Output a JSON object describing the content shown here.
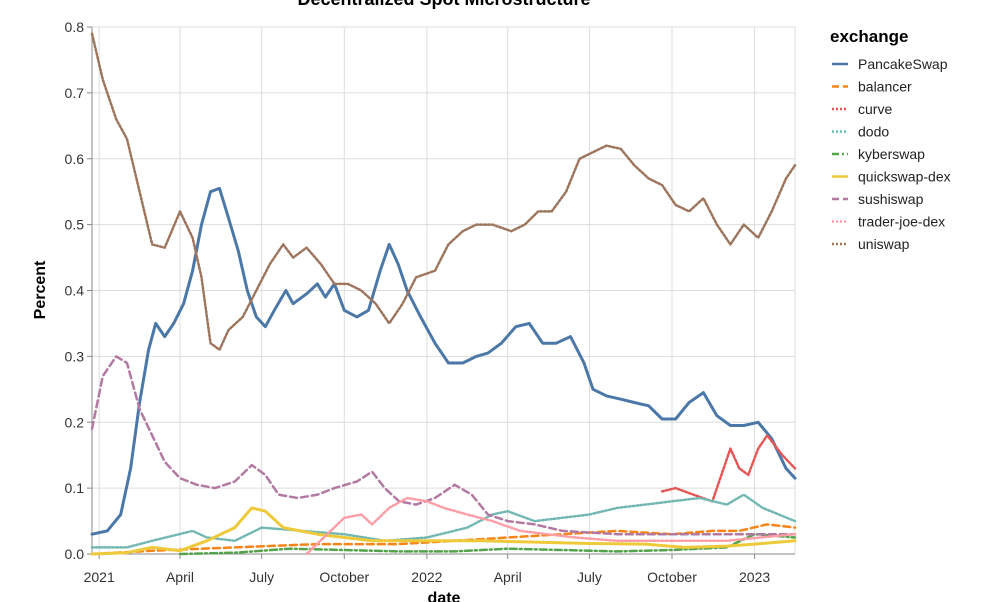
{
  "chart_data": {
    "type": "line",
    "title": "Decentralized Spot Microstructure",
    "xlabel": "date",
    "ylabel": "Percent",
    "ylim": [
      0,
      0.8
    ],
    "xlim": [
      "2020-12-24",
      "2023-02-15"
    ],
    "grid": true,
    "legend": {
      "title": "exchange",
      "placement": "right"
    },
    "x_ticks": [
      {
        "date": "2021-01-01",
        "label": "2021"
      },
      {
        "date": "2021-04-01",
        "label": "April"
      },
      {
        "date": "2021-07-01",
        "label": "July"
      },
      {
        "date": "2021-10-01",
        "label": "October"
      },
      {
        "date": "2022-01-01",
        "label": "2022"
      },
      {
        "date": "2022-04-01",
        "label": "April"
      },
      {
        "date": "2022-07-01",
        "label": "July"
      },
      {
        "date": "2022-10-01",
        "label": "October"
      },
      {
        "date": "2023-01-01",
        "label": "2023"
      }
    ],
    "y_ticks": [
      {
        "value": 0.0,
        "label": "0.0"
      },
      {
        "value": 0.1,
        "label": "0.1"
      },
      {
        "value": 0.2,
        "label": "0.2"
      },
      {
        "value": 0.3,
        "label": "0.3"
      },
      {
        "value": 0.4,
        "label": "0.4"
      },
      {
        "value": 0.5,
        "label": "0.5"
      },
      {
        "value": 0.6,
        "label": "0.6"
      },
      {
        "value": 0.7,
        "label": "0.7"
      },
      {
        "value": 0.8,
        "label": "0.8"
      }
    ],
    "series": [
      {
        "name": "PancakeSwap",
        "color": "#4c78a8",
        "dash": "solid",
        "points": [
          [
            "2020-12-24",
            0.03
          ],
          [
            "2021-01-10",
            0.035
          ],
          [
            "2021-01-25",
            0.06
          ],
          [
            "2021-02-05",
            0.13
          ],
          [
            "2021-02-15",
            0.23
          ],
          [
            "2021-02-25",
            0.31
          ],
          [
            "2021-03-05",
            0.35
          ],
          [
            "2021-03-15",
            0.33
          ],
          [
            "2021-03-25",
            0.35
          ],
          [
            "2021-04-05",
            0.38
          ],
          [
            "2021-04-15",
            0.43
          ],
          [
            "2021-04-25",
            0.5
          ],
          [
            "2021-05-05",
            0.55
          ],
          [
            "2021-05-15",
            0.555
          ],
          [
            "2021-05-25",
            0.51
          ],
          [
            "2021-06-05",
            0.46
          ],
          [
            "2021-06-15",
            0.4
          ],
          [
            "2021-06-25",
            0.36
          ],
          [
            "2021-07-05",
            0.345
          ],
          [
            "2021-07-15",
            0.37
          ],
          [
            "2021-07-28",
            0.4
          ],
          [
            "2021-08-05",
            0.38
          ],
          [
            "2021-08-20",
            0.395
          ],
          [
            "2021-09-01",
            0.41
          ],
          [
            "2021-09-10",
            0.39
          ],
          [
            "2021-09-20",
            0.41
          ],
          [
            "2021-10-01",
            0.37
          ],
          [
            "2021-10-15",
            0.36
          ],
          [
            "2021-10-28",
            0.37
          ],
          [
            "2021-11-10",
            0.43
          ],
          [
            "2021-11-20",
            0.47
          ],
          [
            "2021-11-30",
            0.44
          ],
          [
            "2021-12-10",
            0.4
          ],
          [
            "2021-12-25",
            0.36
          ],
          [
            "2022-01-10",
            0.32
          ],
          [
            "2022-01-25",
            0.29
          ],
          [
            "2022-02-10",
            0.29
          ],
          [
            "2022-02-25",
            0.3
          ],
          [
            "2022-03-10",
            0.305
          ],
          [
            "2022-03-25",
            0.32
          ],
          [
            "2022-04-10",
            0.345
          ],
          [
            "2022-04-25",
            0.35
          ],
          [
            "2022-05-10",
            0.32
          ],
          [
            "2022-05-25",
            0.32
          ],
          [
            "2022-06-10",
            0.33
          ],
          [
            "2022-06-25",
            0.29
          ],
          [
            "2022-07-05",
            0.25
          ],
          [
            "2022-07-20",
            0.24
          ],
          [
            "2022-08-05",
            0.235
          ],
          [
            "2022-08-20",
            0.23
          ],
          [
            "2022-09-05",
            0.225
          ],
          [
            "2022-09-20",
            0.205
          ],
          [
            "2022-10-05",
            0.205
          ],
          [
            "2022-10-20",
            0.23
          ],
          [
            "2022-11-05",
            0.245
          ],
          [
            "2022-11-20",
            0.21
          ],
          [
            "2022-12-05",
            0.195
          ],
          [
            "2022-12-20",
            0.195
          ],
          [
            "2023-01-05",
            0.2
          ],
          [
            "2023-01-20",
            0.175
          ],
          [
            "2023-02-05",
            0.13
          ],
          [
            "2023-02-15",
            0.115
          ]
        ]
      },
      {
        "name": "balancer",
        "color": "#f58518",
        "dash": "dashed",
        "points": [
          [
            "2020-12-24",
            0.0
          ],
          [
            "2021-03-01",
            0.005
          ],
          [
            "2021-06-01",
            0.01
          ],
          [
            "2021-09-01",
            0.015
          ],
          [
            "2021-12-01",
            0.015
          ],
          [
            "2022-02-01",
            0.02
          ],
          [
            "2022-04-01",
            0.025
          ],
          [
            "2022-06-01",
            0.03
          ],
          [
            "2022-08-01",
            0.035
          ],
          [
            "2022-10-01",
            0.03
          ],
          [
            "2022-11-15",
            0.035
          ],
          [
            "2022-12-15",
            0.035
          ],
          [
            "2023-01-15",
            0.045
          ],
          [
            "2023-02-15",
            0.04
          ]
        ]
      },
      {
        "name": "curve",
        "color": "#e45756",
        "dash": "dotted",
        "points": [
          [
            "2022-09-20",
            0.095
          ],
          [
            "2022-10-05",
            0.1
          ],
          [
            "2022-10-25",
            0.09
          ],
          [
            "2022-11-15",
            0.08
          ],
          [
            "2022-11-25",
            0.12
          ],
          [
            "2022-12-05",
            0.16
          ],
          [
            "2022-12-15",
            0.13
          ],
          [
            "2022-12-25",
            0.12
          ],
          [
            "2023-01-05",
            0.16
          ],
          [
            "2023-01-15",
            0.18
          ],
          [
            "2023-02-01",
            0.15
          ],
          [
            "2023-02-15",
            0.13
          ]
        ]
      },
      {
        "name": "dodo",
        "color": "#72b7b2",
        "dash": "dotted",
        "points": [
          [
            "2020-12-24",
            0.01
          ],
          [
            "2021-02-01",
            0.01
          ],
          [
            "2021-03-01",
            0.02
          ],
          [
            "2021-04-15",
            0.035
          ],
          [
            "2021-05-01",
            0.025
          ],
          [
            "2021-06-01",
            0.02
          ],
          [
            "2021-07-01",
            0.04
          ],
          [
            "2021-08-15",
            0.035
          ],
          [
            "2021-10-01",
            0.03
          ],
          [
            "2021-11-15",
            0.02
          ],
          [
            "2022-01-01",
            0.025
          ],
          [
            "2022-02-15",
            0.04
          ],
          [
            "2022-03-15",
            0.06
          ],
          [
            "2022-04-01",
            0.065
          ],
          [
            "2022-05-01",
            0.05
          ],
          [
            "2022-06-01",
            0.055
          ],
          [
            "2022-07-01",
            0.06
          ],
          [
            "2022-08-01",
            0.07
          ],
          [
            "2022-09-01",
            0.075
          ],
          [
            "2022-10-01",
            0.08
          ],
          [
            "2022-11-01",
            0.085
          ],
          [
            "2022-12-01",
            0.075
          ],
          [
            "2022-12-20",
            0.09
          ],
          [
            "2023-01-10",
            0.07
          ],
          [
            "2023-02-15",
            0.05
          ]
        ]
      },
      {
        "name": "kyberswap",
        "color": "#54a24b",
        "dash": "dashdot",
        "points": [
          [
            "2021-04-01",
            0.0
          ],
          [
            "2021-06-01",
            0.002
          ],
          [
            "2021-08-01",
            0.008
          ],
          [
            "2021-10-01",
            0.006
          ],
          [
            "2021-12-01",
            0.004
          ],
          [
            "2022-02-01",
            0.004
          ],
          [
            "2022-04-01",
            0.008
          ],
          [
            "2022-06-01",
            0.006
          ],
          [
            "2022-08-01",
            0.004
          ],
          [
            "2022-10-01",
            0.006
          ],
          [
            "2022-12-01",
            0.01
          ],
          [
            "2023-01-01",
            0.03
          ],
          [
            "2023-02-15",
            0.025
          ]
        ]
      },
      {
        "name": "quickswap-dex",
        "color": "#eeca3b",
        "dash": "solid",
        "points": [
          [
            "2020-12-24",
            0.0
          ],
          [
            "2021-02-01",
            0.002
          ],
          [
            "2021-03-01",
            0.01
          ],
          [
            "2021-04-01",
            0.005
          ],
          [
            "2021-05-01",
            0.02
          ],
          [
            "2021-06-01",
            0.04
          ],
          [
            "2021-06-20",
            0.07
          ],
          [
            "2021-07-05",
            0.065
          ],
          [
            "2021-07-25",
            0.04
          ],
          [
            "2021-09-01",
            0.03
          ],
          [
            "2021-10-01",
            0.025
          ],
          [
            "2021-11-01",
            0.02
          ],
          [
            "2022-01-01",
            0.02
          ],
          [
            "2022-03-01",
            0.02
          ],
          [
            "2022-05-01",
            0.018
          ],
          [
            "2022-07-01",
            0.016
          ],
          [
            "2022-09-01",
            0.015
          ],
          [
            "2022-10-15",
            0.01
          ],
          [
            "2022-12-01",
            0.012
          ],
          [
            "2023-01-01",
            0.015
          ],
          [
            "2023-02-15",
            0.02
          ]
        ]
      },
      {
        "name": "sushiswap",
        "color": "#b279a2",
        "dash": "dashed",
        "points": [
          [
            "2020-12-24",
            0.19
          ],
          [
            "2021-01-05",
            0.27
          ],
          [
            "2021-01-20",
            0.3
          ],
          [
            "2021-02-01",
            0.29
          ],
          [
            "2021-02-15",
            0.22
          ],
          [
            "2021-03-01",
            0.18
          ],
          [
            "2021-03-15",
            0.14
          ],
          [
            "2021-04-01",
            0.115
          ],
          [
            "2021-04-20",
            0.105
          ],
          [
            "2021-05-10",
            0.1
          ],
          [
            "2021-06-01",
            0.11
          ],
          [
            "2021-06-20",
            0.135
          ],
          [
            "2021-07-05",
            0.12
          ],
          [
            "2021-07-20",
            0.09
          ],
          [
            "2021-08-10",
            0.085
          ],
          [
            "2021-09-01",
            0.09
          ],
          [
            "2021-09-20",
            0.1
          ],
          [
            "2021-10-15",
            0.11
          ],
          [
            "2021-11-01",
            0.125
          ],
          [
            "2021-11-15",
            0.1
          ],
          [
            "2021-12-01",
            0.08
          ],
          [
            "2021-12-20",
            0.075
          ],
          [
            "2022-01-10",
            0.085
          ],
          [
            "2022-02-01",
            0.105
          ],
          [
            "2022-02-20",
            0.09
          ],
          [
            "2022-03-10",
            0.06
          ],
          [
            "2022-04-01",
            0.05
          ],
          [
            "2022-05-01",
            0.045
          ],
          [
            "2022-06-01",
            0.035
          ],
          [
            "2022-08-01",
            0.03
          ],
          [
            "2022-10-01",
            0.03
          ],
          [
            "2022-12-01",
            0.03
          ],
          [
            "2023-02-15",
            0.03
          ]
        ]
      },
      {
        "name": "trader-joe-dex",
        "color": "#ff9da6",
        "dash": "dotted",
        "points": [
          [
            "2021-08-20",
            0.0
          ],
          [
            "2021-10-01",
            0.055
          ],
          [
            "2021-10-20",
            0.06
          ],
          [
            "2021-11-01",
            0.045
          ],
          [
            "2021-11-20",
            0.07
          ],
          [
            "2021-12-10",
            0.085
          ],
          [
            "2022-01-01",
            0.08
          ],
          [
            "2022-01-20",
            0.07
          ],
          [
            "2022-02-15",
            0.06
          ],
          [
            "2022-03-15",
            0.05
          ],
          [
            "2022-04-15",
            0.035
          ],
          [
            "2022-05-15",
            0.03
          ],
          [
            "2022-06-15",
            0.025
          ],
          [
            "2022-08-01",
            0.02
          ],
          [
            "2022-10-01",
            0.02
          ],
          [
            "2022-12-01",
            0.02
          ],
          [
            "2023-02-15",
            0.03
          ]
        ]
      },
      {
        "name": "uniswap",
        "color": "#9d755d",
        "dash": "dotted",
        "points": [
          [
            "2020-12-24",
            0.79
          ],
          [
            "2021-01-05",
            0.72
          ],
          [
            "2021-01-20",
            0.66
          ],
          [
            "2021-02-01",
            0.63
          ],
          [
            "2021-02-15",
            0.55
          ],
          [
            "2021-03-01",
            0.47
          ],
          [
            "2021-03-15",
            0.465
          ],
          [
            "2021-04-01",
            0.52
          ],
          [
            "2021-04-15",
            0.48
          ],
          [
            "2021-04-25",
            0.42
          ],
          [
            "2021-05-05",
            0.32
          ],
          [
            "2021-05-15",
            0.31
          ],
          [
            "2021-05-25",
            0.34
          ],
          [
            "2021-06-10",
            0.36
          ],
          [
            "2021-06-25",
            0.4
          ],
          [
            "2021-07-10",
            0.44
          ],
          [
            "2021-07-25",
            0.47
          ],
          [
            "2021-08-05",
            0.45
          ],
          [
            "2021-08-20",
            0.465
          ],
          [
            "2021-09-05",
            0.44
          ],
          [
            "2021-09-20",
            0.41
          ],
          [
            "2021-10-05",
            0.41
          ],
          [
            "2021-10-20",
            0.4
          ],
          [
            "2021-11-05",
            0.38
          ],
          [
            "2021-11-20",
            0.35
          ],
          [
            "2021-12-05",
            0.38
          ],
          [
            "2021-12-20",
            0.42
          ],
          [
            "2022-01-10",
            0.43
          ],
          [
            "2022-01-25",
            0.47
          ],
          [
            "2022-02-10",
            0.49
          ],
          [
            "2022-02-25",
            0.5
          ],
          [
            "2022-03-15",
            0.5
          ],
          [
            "2022-04-05",
            0.49
          ],
          [
            "2022-04-20",
            0.5
          ],
          [
            "2022-05-05",
            0.52
          ],
          [
            "2022-05-20",
            0.52
          ],
          [
            "2022-06-05",
            0.55
          ],
          [
            "2022-06-20",
            0.6
          ],
          [
            "2022-07-05",
            0.61
          ],
          [
            "2022-07-20",
            0.62
          ],
          [
            "2022-08-05",
            0.615
          ],
          [
            "2022-08-20",
            0.59
          ],
          [
            "2022-09-05",
            0.57
          ],
          [
            "2022-09-20",
            0.56
          ],
          [
            "2022-10-05",
            0.53
          ],
          [
            "2022-10-20",
            0.52
          ],
          [
            "2022-11-05",
            0.54
          ],
          [
            "2022-11-20",
            0.5
          ],
          [
            "2022-12-05",
            0.47
          ],
          [
            "2022-12-20",
            0.5
          ],
          [
            "2023-01-05",
            0.48
          ],
          [
            "2023-01-20",
            0.52
          ],
          [
            "2023-02-05",
            0.57
          ],
          [
            "2023-02-15",
            0.59
          ]
        ]
      }
    ]
  }
}
